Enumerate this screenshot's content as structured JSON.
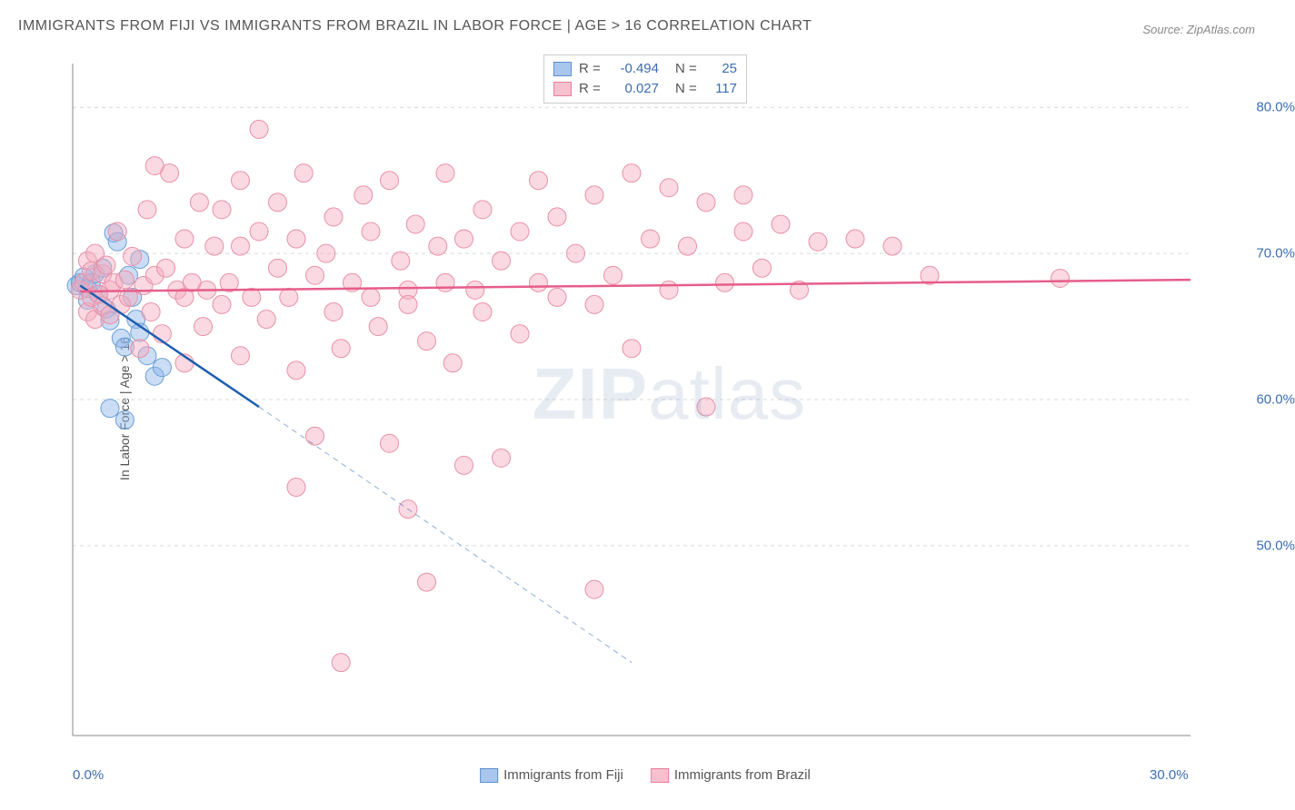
{
  "title": "IMMIGRANTS FROM FIJI VS IMMIGRANTS FROM BRAZIL IN LABOR FORCE | AGE > 16 CORRELATION CHART",
  "source": "Source: ZipAtlas.com",
  "ylabel": "In Labor Force | Age > 16",
  "watermark_bold": "ZIP",
  "watermark_light": "atlas",
  "chart": {
    "type": "scatter-correlation",
    "background_color": "#ffffff",
    "grid_color": "#d9d9d9",
    "grid_dash": "4,4",
    "axis_color": "#888888",
    "xlim": [
      0,
      30
    ],
    "ylim": [
      37,
      83
    ],
    "xticks": [
      {
        "v": 0,
        "label": "0.0%"
      },
      {
        "v": 30,
        "label": "30.0%"
      }
    ],
    "yticks": [
      {
        "v": 50,
        "label": "50.0%"
      },
      {
        "v": 60,
        "label": "60.0%"
      },
      {
        "v": 70,
        "label": "70.0%"
      },
      {
        "v": 80,
        "label": "80.0%"
      }
    ],
    "grid_y": [
      50,
      60,
      70,
      80
    ],
    "tick_color": "#3b6db0",
    "tick_fontsize": 15,
    "series": [
      {
        "name": "Immigrants from Fiji",
        "marker_fill": "rgba(140,180,230,0.45)",
        "marker_stroke": "#6a9ed8",
        "marker_r": 10,
        "swatch_fill": "#a9c7ec",
        "swatch_border": "#5b8fd0",
        "regression": {
          "color": "#1f5fb0",
          "width": 2.5,
          "solid_xrange": [
            0.2,
            5
          ],
          "solid_y": [
            67.8,
            59.5
          ],
          "dash_xrange": [
            5,
            15
          ],
          "dash_y": [
            59.5,
            42
          ],
          "R": "-0.494",
          "N": "25"
        },
        "data": [
          [
            0.1,
            67.8
          ],
          [
            0.2,
            68.0
          ],
          [
            0.3,
            68.4
          ],
          [
            0.4,
            67.6
          ],
          [
            0.4,
            66.8
          ],
          [
            0.5,
            68.0
          ],
          [
            0.6,
            68.6
          ],
          [
            0.7,
            67.2
          ],
          [
            0.8,
            69.0
          ],
          [
            0.9,
            66.2
          ],
          [
            1.0,
            65.4
          ],
          [
            1.1,
            71.4
          ],
          [
            1.2,
            70.8
          ],
          [
            1.3,
            64.2
          ],
          [
            1.4,
            63.6
          ],
          [
            1.5,
            68.5
          ],
          [
            1.6,
            67.0
          ],
          [
            1.7,
            65.5
          ],
          [
            1.8,
            64.6
          ],
          [
            2.0,
            63.0
          ],
          [
            2.2,
            61.6
          ],
          [
            2.4,
            62.2
          ],
          [
            1.0,
            59.4
          ],
          [
            1.4,
            58.6
          ],
          [
            1.8,
            69.6
          ]
        ]
      },
      {
        "name": "Immigrants from Brazil",
        "marker_fill": "rgba(245,170,190,0.45)",
        "marker_stroke": "#e890a6",
        "marker_r": 10,
        "swatch_fill": "#f6c0cf",
        "swatch_border": "#e87f9c",
        "regression": {
          "color": "#e75d8a",
          "width": 2.5,
          "solid_xrange": [
            0.2,
            30
          ],
          "solid_y": [
            67.4,
            68.2
          ],
          "R": "0.027",
          "N": "117"
        },
        "data": [
          [
            0.2,
            67.5
          ],
          [
            0.3,
            68.0
          ],
          [
            0.4,
            66.0
          ],
          [
            0.4,
            69.5
          ],
          [
            0.5,
            67.0
          ],
          [
            0.5,
            68.8
          ],
          [
            0.6,
            65.5
          ],
          [
            0.6,
            70.0
          ],
          [
            0.7,
            67.2
          ],
          [
            0.8,
            66.4
          ],
          [
            0.8,
            68.6
          ],
          [
            0.9,
            69.2
          ],
          [
            1.0,
            65.8
          ],
          [
            1.0,
            67.5
          ],
          [
            1.1,
            68.0
          ],
          [
            1.2,
            71.5
          ],
          [
            1.3,
            66.5
          ],
          [
            1.4,
            68.2
          ],
          [
            1.5,
            67.0
          ],
          [
            1.6,
            69.8
          ],
          [
            1.8,
            63.5
          ],
          [
            1.9,
            67.8
          ],
          [
            2.0,
            73.0
          ],
          [
            2.1,
            66.0
          ],
          [
            2.2,
            68.5
          ],
          [
            2.4,
            64.5
          ],
          [
            2.5,
            69.0
          ],
          [
            2.6,
            75.5
          ],
          [
            2.8,
            67.5
          ],
          [
            3.0,
            71.0
          ],
          [
            3.0,
            62.5
          ],
          [
            3.2,
            68.0
          ],
          [
            3.4,
            73.5
          ],
          [
            3.5,
            65.0
          ],
          [
            3.6,
            67.5
          ],
          [
            3.8,
            70.5
          ],
          [
            4.0,
            66.5
          ],
          [
            4.0,
            73.0
          ],
          [
            4.2,
            68.0
          ],
          [
            4.5,
            75.0
          ],
          [
            4.5,
            63.0
          ],
          [
            4.8,
            67.0
          ],
          [
            5.0,
            71.5
          ],
          [
            5.0,
            78.5
          ],
          [
            5.2,
            65.5
          ],
          [
            5.5,
            69.0
          ],
          [
            5.5,
            73.5
          ],
          [
            5.8,
            67.0
          ],
          [
            6.0,
            62.0
          ],
          [
            6.0,
            71.0
          ],
          [
            6.2,
            75.5
          ],
          [
            6.5,
            68.5
          ],
          [
            6.5,
            57.5
          ],
          [
            6.8,
            70.0
          ],
          [
            7.0,
            66.0
          ],
          [
            7.0,
            72.5
          ],
          [
            7.2,
            63.5
          ],
          [
            7.5,
            68.0
          ],
          [
            7.8,
            74.0
          ],
          [
            8.0,
            67.0
          ],
          [
            8.0,
            71.5
          ],
          [
            8.2,
            65.0
          ],
          [
            8.5,
            75.0
          ],
          [
            8.5,
            57.0
          ],
          [
            8.8,
            69.5
          ],
          [
            9.0,
            67.5
          ],
          [
            9.0,
            66.5
          ],
          [
            9.2,
            72.0
          ],
          [
            9.5,
            64.0
          ],
          [
            9.5,
            47.5
          ],
          [
            9.8,
            70.5
          ],
          [
            10.0,
            68.0
          ],
          [
            10.0,
            75.5
          ],
          [
            10.2,
            62.5
          ],
          [
            10.5,
            71.0
          ],
          [
            10.5,
            55.5
          ],
          [
            10.8,
            67.5
          ],
          [
            11.0,
            73.0
          ],
          [
            11.0,
            66.0
          ],
          [
            11.5,
            69.5
          ],
          [
            11.5,
            56.0
          ],
          [
            12.0,
            71.5
          ],
          [
            12.0,
            64.5
          ],
          [
            12.5,
            68.0
          ],
          [
            12.5,
            75.0
          ],
          [
            13.0,
            67.0
          ],
          [
            13.0,
            72.5
          ],
          [
            13.5,
            70.0
          ],
          [
            14.0,
            66.5
          ],
          [
            14.0,
            74.0
          ],
          [
            14.5,
            68.5
          ],
          [
            15.0,
            75.5
          ],
          [
            15.0,
            63.5
          ],
          [
            15.5,
            71.0
          ],
          [
            16.0,
            67.5
          ],
          [
            16.0,
            74.5
          ],
          [
            16.5,
            70.5
          ],
          [
            17.0,
            73.5
          ],
          [
            17.0,
            59.5
          ],
          [
            17.5,
            68.0
          ],
          [
            18.0,
            74.0
          ],
          [
            18.0,
            71.5
          ],
          [
            18.5,
            69.0
          ],
          [
            19.0,
            72.0
          ],
          [
            19.5,
            67.5
          ],
          [
            20.0,
            70.8
          ],
          [
            21.0,
            71.0
          ],
          [
            22.0,
            70.5
          ],
          [
            23.0,
            68.5
          ],
          [
            26.5,
            68.3
          ],
          [
            14.0,
            47.0
          ],
          [
            7.2,
            42.0
          ],
          [
            2.2,
            76.0
          ],
          [
            3.0,
            67.0
          ],
          [
            4.5,
            70.5
          ],
          [
            6.0,
            54.0
          ],
          [
            9.0,
            52.5
          ]
        ]
      }
    ]
  },
  "legend_top": [
    {
      "swatch_fill": "#a9c7ec",
      "swatch_border": "#5b8fd0",
      "R": "-0.494",
      "N": "25"
    },
    {
      "swatch_fill": "#f6c0cf",
      "swatch_border": "#e87f9c",
      "R": "0.027",
      "N": "117"
    }
  ],
  "legend_bottom": [
    {
      "swatch_fill": "#a9c7ec",
      "swatch_border": "#5b8fd0",
      "label": "Immigrants from Fiji"
    },
    {
      "swatch_fill": "#f6c0cf",
      "swatch_border": "#e87f9c",
      "label": "Immigrants from Brazil"
    }
  ],
  "labels": {
    "R": "R =",
    "N": "N ="
  }
}
